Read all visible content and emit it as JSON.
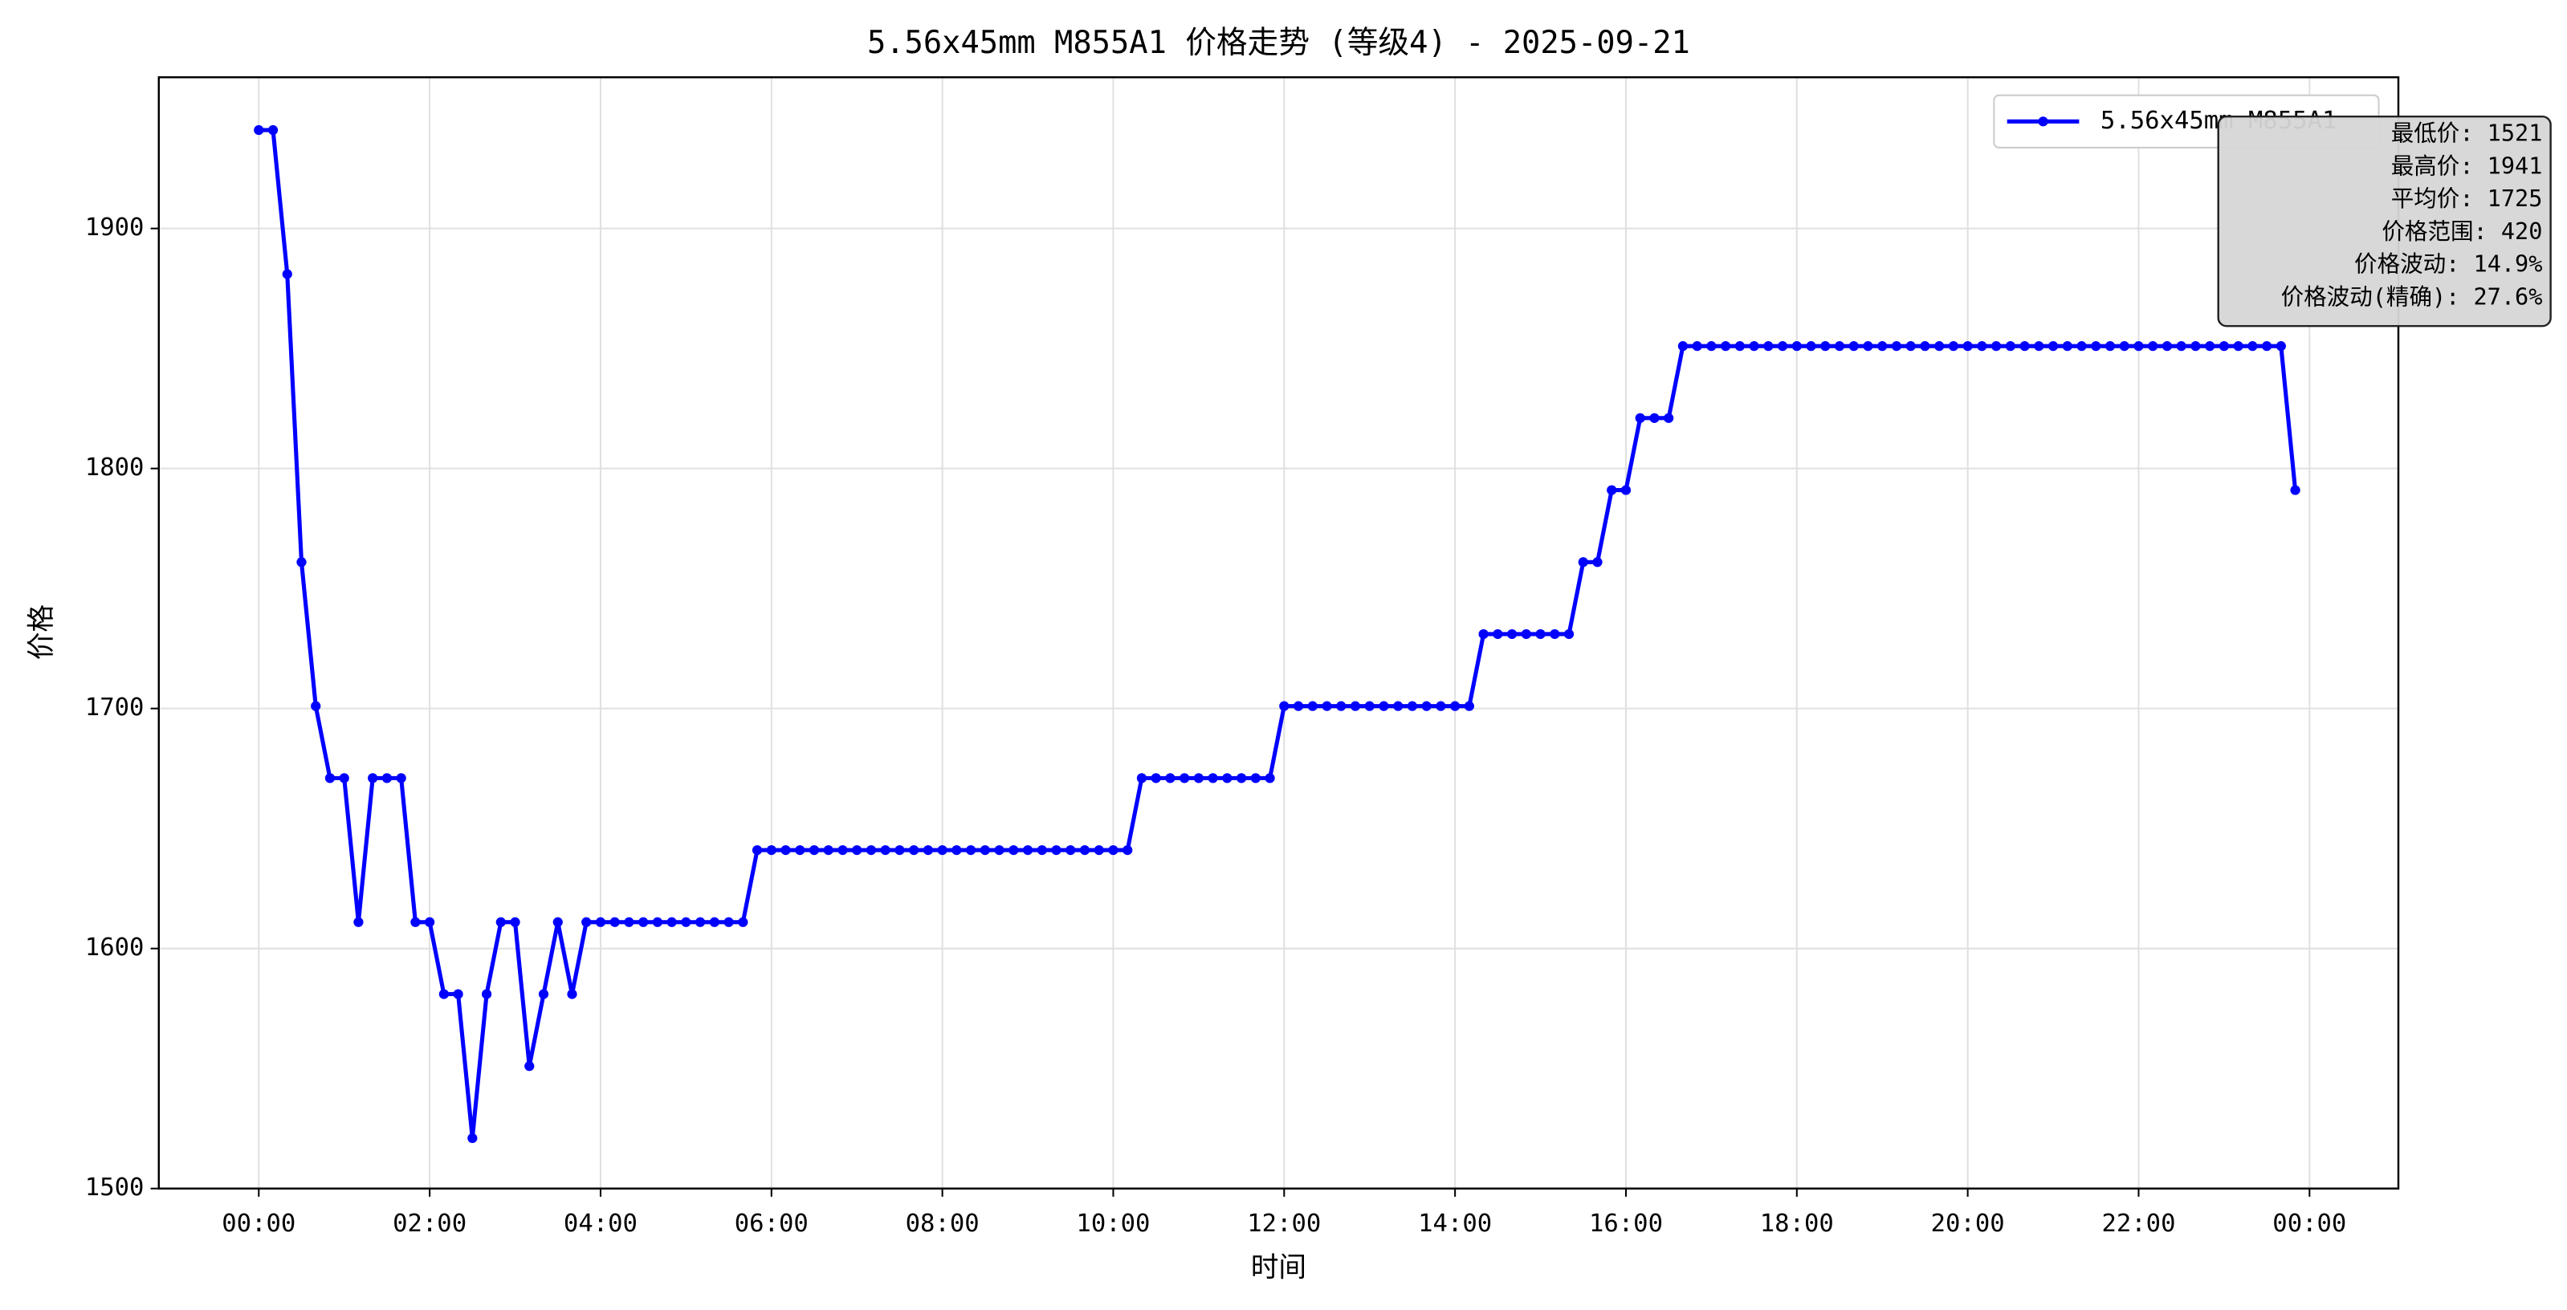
{
  "chart_data": {
    "type": "line",
    "title": "5.56x45mm M855A1 价格走势 (等级4) - 2025-09-21",
    "xlabel": "时间",
    "ylabel": "价格",
    "x": [
      "00:00",
      "00:10",
      "00:20",
      "00:30",
      "00:40",
      "00:50",
      "01:00",
      "01:10",
      "01:20",
      "01:30",
      "01:40",
      "01:50",
      "02:00",
      "02:10",
      "02:20",
      "02:30",
      "02:40",
      "02:50",
      "03:00",
      "03:10",
      "03:20",
      "03:30",
      "03:40",
      "03:50",
      "04:00",
      "04:10",
      "04:20",
      "04:30",
      "04:40",
      "04:50",
      "05:00",
      "05:10",
      "05:20",
      "05:30",
      "05:40",
      "05:50",
      "06:00",
      "06:10",
      "06:20",
      "06:30",
      "06:40",
      "06:50",
      "07:00",
      "07:10",
      "07:20",
      "07:30",
      "07:40",
      "07:50",
      "08:00",
      "08:10",
      "08:20",
      "08:30",
      "08:40",
      "08:50",
      "09:00",
      "09:10",
      "09:20",
      "09:30",
      "09:40",
      "09:50",
      "10:00",
      "10:10",
      "10:20",
      "10:30",
      "10:40",
      "10:50",
      "11:00",
      "11:10",
      "11:20",
      "11:30",
      "11:40",
      "11:50",
      "12:00",
      "12:10",
      "12:20",
      "12:30",
      "12:40",
      "12:50",
      "13:00",
      "13:10",
      "13:20",
      "13:30",
      "13:40",
      "13:50",
      "14:00",
      "14:10",
      "14:20",
      "14:30",
      "14:40",
      "14:50",
      "15:00",
      "15:10",
      "15:20",
      "15:30",
      "15:40",
      "15:50",
      "16:00",
      "16:10",
      "16:20",
      "16:30",
      "16:40",
      "16:50",
      "17:00",
      "17:10",
      "17:20",
      "17:30",
      "17:40",
      "17:50",
      "18:00",
      "18:10",
      "18:20",
      "18:30",
      "18:40",
      "18:50",
      "19:00",
      "19:10",
      "19:20",
      "19:30",
      "19:40",
      "19:50",
      "20:00",
      "20:10",
      "20:20",
      "20:30",
      "20:40",
      "20:50",
      "21:00",
      "21:10",
      "21:20",
      "21:30",
      "21:40",
      "21:50",
      "22:00",
      "22:10",
      "22:20",
      "22:30",
      "22:40",
      "22:50",
      "23:00",
      "23:10",
      "23:20",
      "23:30",
      "23:40",
      "23:50"
    ],
    "series": [
      {
        "name": "5.56x45mm M855A1",
        "color": "#0000ff",
        "values": [
          1941,
          1941,
          1881,
          1761,
          1701,
          1671,
          1671,
          1611,
          1671,
          1671,
          1671,
          1611,
          1611,
          1581,
          1581,
          1521,
          1581,
          1611,
          1611,
          1551,
          1581,
          1611,
          1581,
          1611,
          1611,
          1611,
          1611,
          1611,
          1611,
          1611,
          1611,
          1611,
          1611,
          1611,
          1611,
          1641,
          1641,
          1641,
          1641,
          1641,
          1641,
          1641,
          1641,
          1641,
          1641,
          1641,
          1641,
          1641,
          1641,
          1641,
          1641,
          1641,
          1641,
          1641,
          1641,
          1641,
          1641,
          1641,
          1641,
          1641,
          1641,
          1641,
          1671,
          1671,
          1671,
          1671,
          1671,
          1671,
          1671,
          1671,
          1671,
          1671,
          1701,
          1701,
          1701,
          1701,
          1701,
          1701,
          1701,
          1701,
          1701,
          1701,
          1701,
          1701,
          1701,
          1701,
          1731,
          1731,
          1731,
          1731,
          1731,
          1731,
          1731,
          1761,
          1761,
          1791,
          1791,
          1821,
          1821,
          1821,
          1851,
          1851,
          1851,
          1851,
          1851,
          1851,
          1851,
          1851,
          1851,
          1851,
          1851,
          1851,
          1851,
          1851,
          1851,
          1851,
          1851,
          1851,
          1851,
          1851,
          1851,
          1851,
          1851,
          1851,
          1851,
          1851,
          1851,
          1851,
          1851,
          1851,
          1851,
          1851,
          1851,
          1851,
          1851,
          1851,
          1851,
          1851,
          1851,
          1851,
          1851,
          1851,
          1851,
          1791
        ]
      }
    ],
    "xlim": [
      -1.17,
      25.04
    ],
    "xticks": [
      {
        "value": 0,
        "label": "00:00"
      },
      {
        "value": 2,
        "label": "02:00"
      },
      {
        "value": 4,
        "label": "04:00"
      },
      {
        "value": 6,
        "label": "06:00"
      },
      {
        "value": 8,
        "label": "08:00"
      },
      {
        "value": 10,
        "label": "10:00"
      },
      {
        "value": 12,
        "label": "12:00"
      },
      {
        "value": 14,
        "label": "14:00"
      },
      {
        "value": 16,
        "label": "16:00"
      },
      {
        "value": 18,
        "label": "18:00"
      },
      {
        "value": 20,
        "label": "20:00"
      },
      {
        "value": 22,
        "label": "22:00"
      },
      {
        "value": 24,
        "label": "00:00"
      }
    ],
    "ylim": [
      1500,
      1963
    ],
    "yticks": [
      1500,
      1600,
      1700,
      1800,
      1900
    ],
    "grid": true,
    "legend": "upper right",
    "annotations": [
      "最低价: 1521",
      "最高价: 1941",
      "平均价: 1725",
      "价格范围: 420",
      "价格波动: 14.9%",
      "价格波动(精确): 27.6%"
    ]
  }
}
